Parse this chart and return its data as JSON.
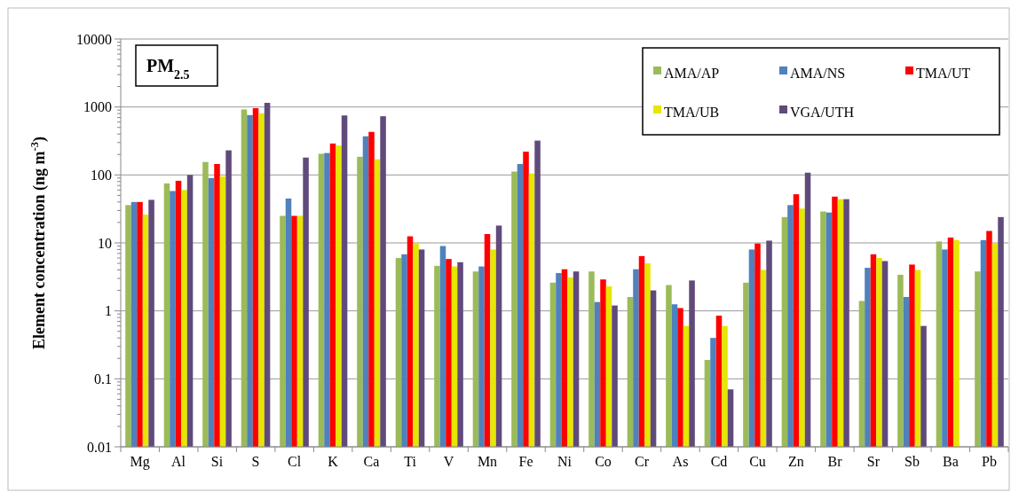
{
  "chart_data": {
    "type": "bar",
    "title": "PM$_{2.5}$",
    "ylabel": "Element concentration (ng m$^{-3}$)",
    "categories": [
      "Mg",
      "Al",
      "Si",
      "S",
      "Cl",
      "K",
      "Ca",
      "Ti",
      "V",
      "Mn",
      "Fe",
      "Ni",
      "Co",
      "Cr",
      "As",
      "Cd",
      "Cu",
      "Zn",
      "Br",
      "Sr",
      "Sb",
      "Ba",
      "Pb"
    ],
    "series": [
      {
        "name": "AMA/AP",
        "color": "#9bbb59",
        "values": [
          36,
          75,
          155,
          920,
          25,
          205,
          185,
          6,
          4.6,
          3.8,
          112,
          2.6,
          3.8,
          1.6,
          2.4,
          0.19,
          2.6,
          24,
          29,
          1.4,
          3.4,
          10.5,
          3.8
        ]
      },
      {
        "name": "AMA/NS",
        "color": "#4f81bd",
        "values": [
          40,
          58,
          90,
          760,
          45,
          210,
          370,
          6.8,
          9,
          4.5,
          145,
          3.6,
          1.35,
          4.1,
          1.25,
          0.4,
          8,
          36,
          28,
          4.3,
          1.6,
          8,
          11
        ]
      },
      {
        "name": "TMA/UT",
        "color": "#ff0000",
        "values": [
          40,
          82,
          145,
          960,
          25,
          290,
          430,
          12.5,
          5.8,
          13.5,
          220,
          4.1,
          2.9,
          6.4,
          1.1,
          0.85,
          9.8,
          52,
          48,
          6.8,
          4.8,
          12,
          15
        ]
      },
      {
        "name": "TMA/UB",
        "color": "#e6e600",
        "values": [
          26,
          60,
          95,
          810,
          25,
          270,
          170,
          9.8,
          4.5,
          8,
          105,
          3.1,
          2.3,
          5,
          0.6,
          0.6,
          4,
          32,
          44,
          6,
          4,
          11,
          10
        ]
      },
      {
        "name": "VGA/UTH",
        "color": "#604a7b",
        "values": [
          43,
          100,
          230,
          1150,
          180,
          750,
          730,
          8,
          5.2,
          18,
          320,
          3.8,
          1.2,
          2,
          2.8,
          0.07,
          10.8,
          108,
          44,
          5.4,
          0.6,
          null,
          24
        ]
      }
    ],
    "log": true,
    "ylim": [
      0.01,
      10000
    ],
    "yticks": [
      0.01,
      0.1,
      1,
      10,
      100,
      1000,
      10000
    ],
    "grid": "y",
    "legend": "top right"
  }
}
